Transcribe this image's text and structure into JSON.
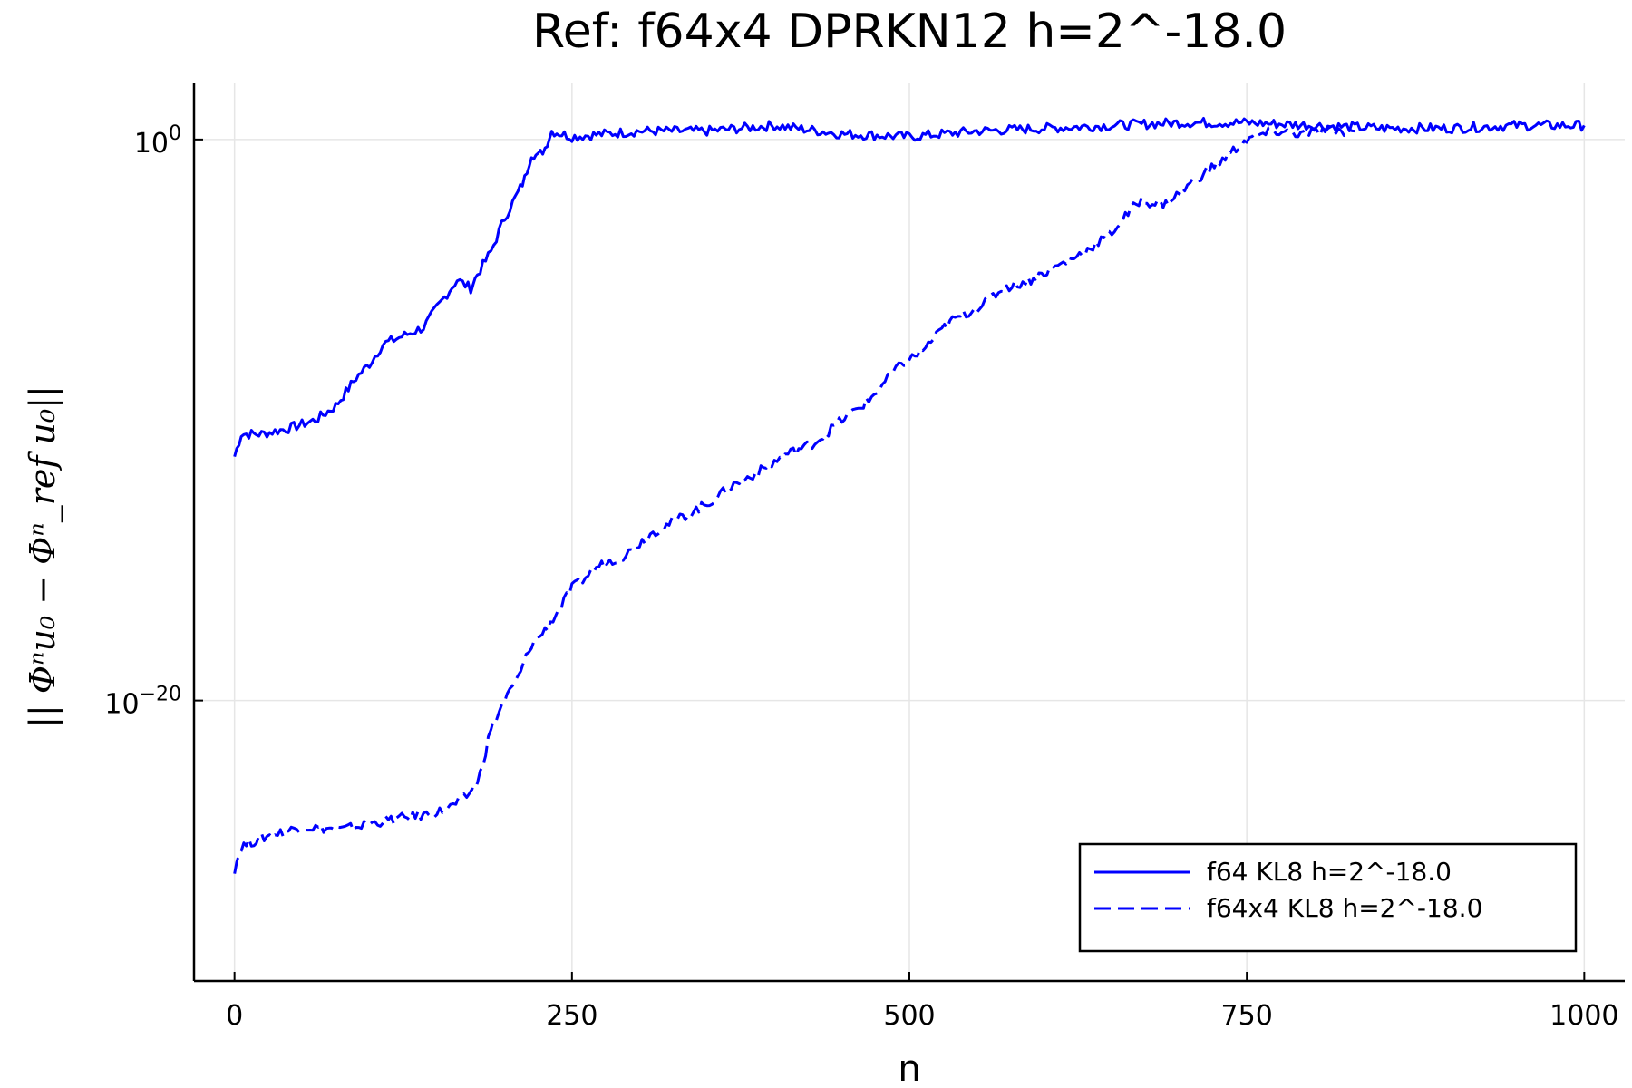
{
  "chart_data": {
    "type": "line",
    "title": "Ref: f64x4 DPRKN12 h=2^-18.0",
    "xlabel": "n",
    "ylabel": "|| Φⁿu₀ − Φⁿ_ref u₀||",
    "xlim": [
      -30,
      1030
    ],
    "ylim_log10": [
      -30,
      2
    ],
    "yscale": "log",
    "grid": true,
    "legend_position": "bottom-right",
    "x_ticks": [
      {
        "value": 0,
        "label": "0"
      },
      {
        "value": 250,
        "label": "250"
      },
      {
        "value": 500,
        "label": "500"
      },
      {
        "value": 750,
        "label": "750"
      },
      {
        "value": 1000,
        "label": "1000"
      }
    ],
    "y_ticks": [
      {
        "value_log10": 0,
        "base": "10",
        "exp": "0"
      },
      {
        "value_log10": -20,
        "base": "10",
        "exp": "−20"
      }
    ],
    "series": [
      {
        "name": "f64 KL8 h=2^-18.0",
        "color": "#0000ff",
        "dash": "solid",
        "x": [
          0,
          5,
          20,
          40,
          60,
          75,
          90,
          100,
          110,
          130,
          140,
          150,
          165,
          175,
          180,
          190,
          200,
          210,
          215,
          220,
          225,
          230,
          235,
          250,
          300,
          350,
          400,
          450,
          500,
          550,
          600,
          650,
          700,
          750,
          800,
          850,
          900,
          950,
          1000
        ],
        "log10": [
          -11.3,
          -10.5,
          -10.5,
          -10.3,
          -10.0,
          -9.5,
          -8.5,
          -8.0,
          -7.3,
          -6.9,
          -6.7,
          -6.0,
          -5.0,
          -5.3,
          -4.8,
          -4.0,
          -2.8,
          -1.9,
          -1.4,
          -0.5,
          -0.6,
          -0.3,
          0.3,
          0.1,
          0.3,
          0.3,
          0.5,
          0.2,
          0.1,
          0.3,
          0.4,
          0.5,
          0.6,
          0.6,
          0.5,
          0.4,
          0.4,
          0.5,
          0.5
        ]
      },
      {
        "name": "f64x4 KL8 h=2^-18.0",
        "color": "#0000ff",
        "dash": "dashed",
        "x": [
          0,
          5,
          20,
          50,
          80,
          110,
          150,
          160,
          170,
          180,
          190,
          200,
          210,
          220,
          230,
          240,
          250,
          270,
          290,
          310,
          330,
          350,
          370,
          390,
          410,
          430,
          450,
          470,
          490,
          510,
          530,
          550,
          570,
          590,
          610,
          630,
          650,
          670,
          690,
          710,
          730,
          750,
          770,
          790,
          810,
          830
        ],
        "log10": [
          -26.0,
          -25.2,
          -24.9,
          -24.5,
          -24.6,
          -24.3,
          -24.0,
          -23.8,
          -23.5,
          -23.0,
          -21.0,
          -20.0,
          -19.2,
          -18.0,
          -17.5,
          -16.8,
          -16.0,
          -15.2,
          -14.8,
          -14.0,
          -13.5,
          -13.0,
          -12.3,
          -11.8,
          -11.2,
          -10.8,
          -10.0,
          -9.3,
          -8.2,
          -7.5,
          -6.5,
          -6.0,
          -5.3,
          -5.0,
          -4.5,
          -4.0,
          -3.3,
          -2.2,
          -2.3,
          -1.5,
          -0.8,
          0.0,
          0.3,
          0.2,
          0.3,
          0.3
        ]
      }
    ]
  }
}
